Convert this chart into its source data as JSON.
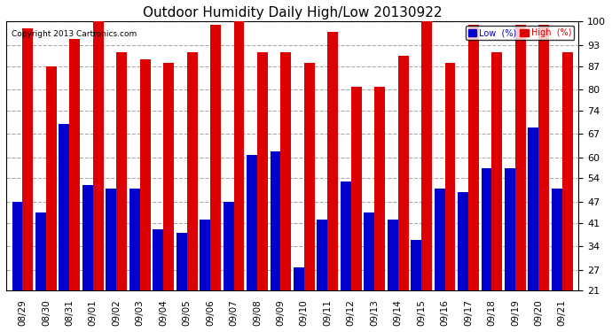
{
  "title": "Outdoor Humidity Daily High/Low 20130922",
  "copyright": "Copyright 2013 Cartronics.com",
  "background_color": "#ffffff",
  "plot_bg_color": "#ffffff",
  "dates": [
    "08/29",
    "08/30",
    "08/31",
    "09/01",
    "09/02",
    "09/03",
    "09/04",
    "09/05",
    "09/06",
    "09/07",
    "09/08",
    "09/09",
    "09/10",
    "09/11",
    "09/12",
    "09/13",
    "09/14",
    "09/15",
    "09/16",
    "09/17",
    "09/18",
    "09/19",
    "09/20",
    "09/21"
  ],
  "high": [
    98,
    87,
    95,
    100,
    91,
    89,
    88,
    91,
    99,
    100,
    91,
    91,
    88,
    97,
    81,
    81,
    90,
    100,
    88,
    99,
    91,
    99,
    99,
    91
  ],
  "low": [
    47,
    44,
    70,
    52,
    51,
    51,
    39,
    38,
    42,
    47,
    61,
    62,
    28,
    42,
    53,
    44,
    42,
    36,
    51,
    50,
    57,
    57,
    69,
    51
  ],
  "high_color": "#dd0000",
  "low_color": "#0000cc",
  "grid_color": "#aaaaaa",
  "ylim_min": 21,
  "ylim_max": 100,
  "yticks": [
    21,
    27,
    34,
    41,
    47,
    54,
    60,
    67,
    74,
    80,
    87,
    93,
    100
  ],
  "legend_low_label": "Low  (%)",
  "legend_high_label": "High  (%)"
}
